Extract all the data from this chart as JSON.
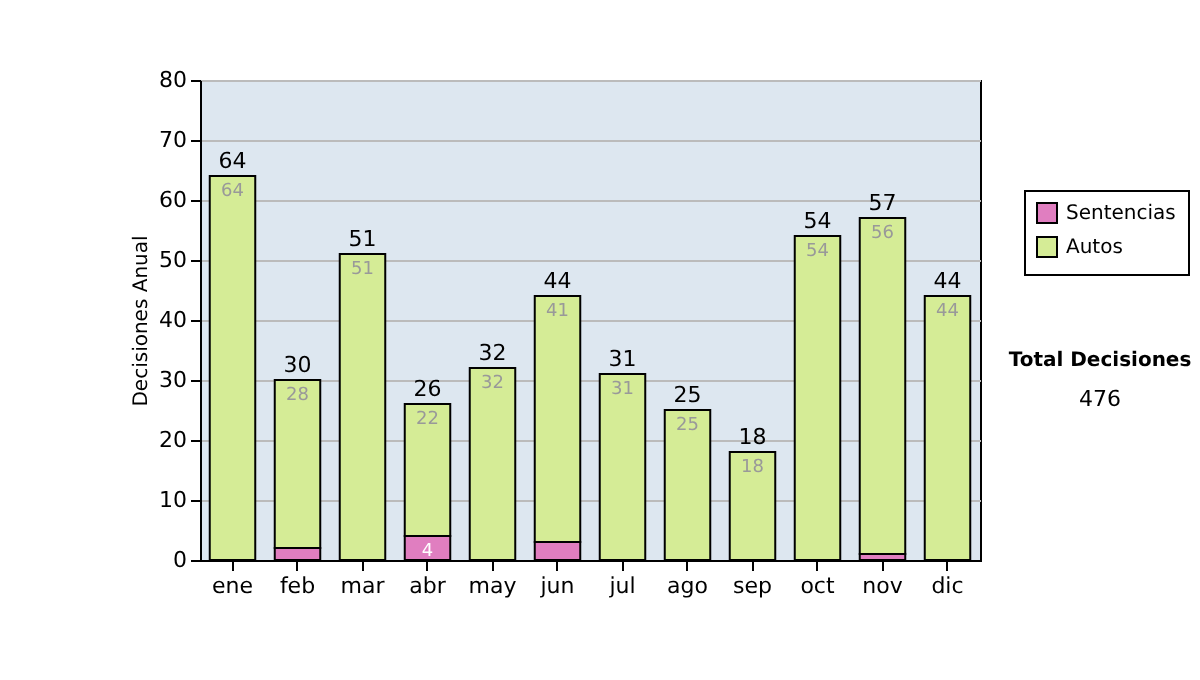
{
  "chart_data": {
    "type": "bar",
    "stacked": true,
    "ylabel": "Decisiones Anual",
    "categories": [
      "ene",
      "feb",
      "mar",
      "abr",
      "may",
      "jun",
      "jul",
      "ago",
      "sep",
      "oct",
      "nov",
      "dic"
    ],
    "series": [
      {
        "name": "Sentencias",
        "color": "#e07ec0",
        "values": [
          0,
          2,
          0,
          4,
          0,
          3,
          0,
          0,
          0,
          0,
          1,
          0
        ],
        "value_labels": [
          null,
          null,
          null,
          "4",
          null,
          null,
          null,
          null,
          null,
          null,
          null,
          null
        ]
      },
      {
        "name": "Autos",
        "color": "#d5ec96",
        "values": [
          64,
          28,
          51,
          22,
          32,
          41,
          31,
          25,
          18,
          54,
          56,
          44
        ],
        "value_labels": [
          "64",
          "28",
          "51",
          "22",
          "32",
          "41",
          "31",
          "25",
          "18",
          "54",
          "56",
          "44"
        ]
      }
    ],
    "totals": [
      "64",
      "30",
      "51",
      "26",
      "32",
      "44",
      "31",
      "25",
      "18",
      "54",
      "57",
      "44"
    ],
    "ylim": [
      0,
      80
    ],
    "yticks": [
      0,
      10,
      20,
      30,
      40,
      50,
      60,
      70,
      80
    ],
    "grid": "y",
    "legend": "right",
    "annotations": [
      "Total Decisiones",
      "476"
    ]
  }
}
